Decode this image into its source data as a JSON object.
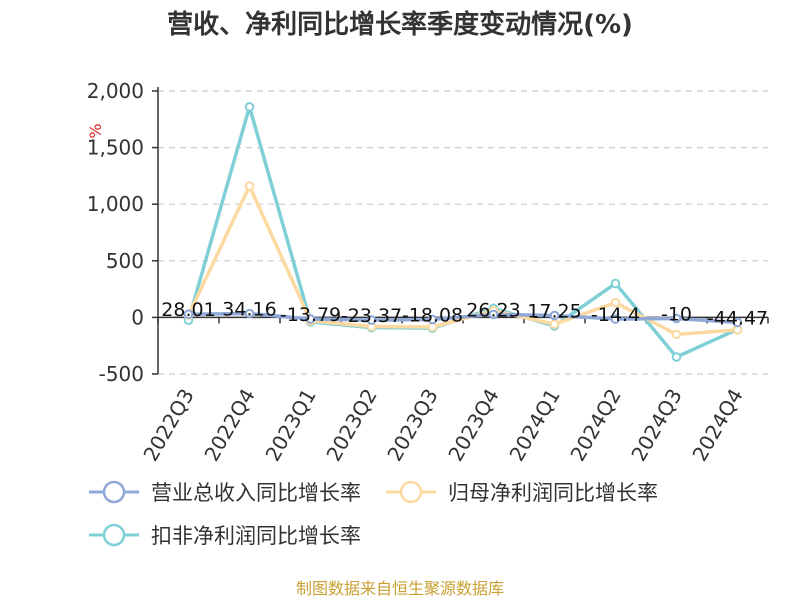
{
  "chart_data": {
    "type": "line",
    "title": "营收、净利同比增长率季度变动情况(%)",
    "unit_label": "%",
    "categories": [
      "2022Q3",
      "2022Q4",
      "2023Q1",
      "2023Q2",
      "2023Q3",
      "2023Q4",
      "2024Q1",
      "2024Q2",
      "2024Q3",
      "2024Q4"
    ],
    "y_ticks": [
      "2,000",
      "1,500",
      "1,000",
      "500",
      "0",
      "-500"
    ],
    "y_tick_values": [
      2000,
      1500,
      1000,
      500,
      0,
      -500
    ],
    "ylim": [
      -500,
      2000
    ],
    "grid": true,
    "legend_position": "bottom",
    "series": [
      {
        "name": "营业总收入同比增长率",
        "color": "#8fa8d8",
        "values": [
          28.01,
          34.16,
          -13.79,
          -23.37,
          -18.08,
          26.23,
          17.25,
          -14.4,
          -10,
          -44.47
        ],
        "labels": [
          "28.01",
          "34.16",
          "-13.79",
          "-23.37",
          "-18.08",
          "26.23",
          "17.25",
          "-14.4",
          "-10",
          "-44.47"
        ]
      },
      {
        "name": "归母净利润同比增长率",
        "color": "#fbd9a0",
        "values": [
          20,
          1160,
          -30,
          -80,
          -85,
          60,
          -60,
          130,
          -150,
          -110
        ]
      },
      {
        "name": "扣非净利润同比增长率",
        "color": "#7fd0d6",
        "values": [
          -25,
          1860,
          -40,
          -90,
          -95,
          80,
          -75,
          300,
          -350,
          -105
        ]
      }
    ],
    "source": "制图数据来自恒生聚源数据库"
  }
}
